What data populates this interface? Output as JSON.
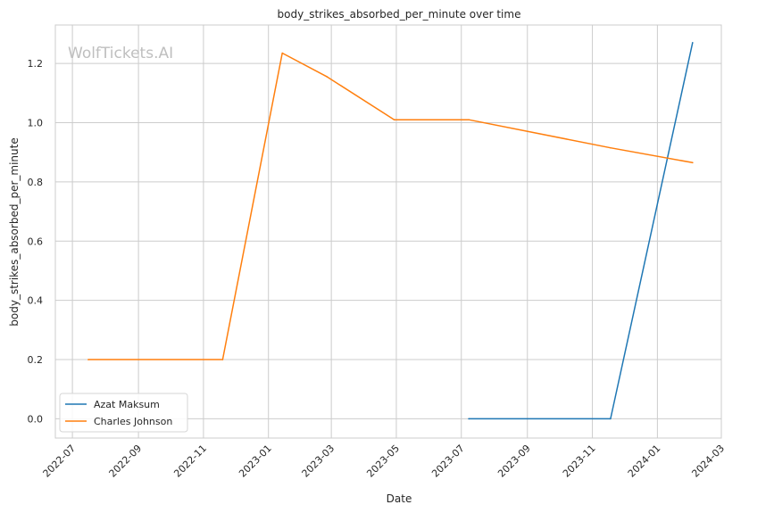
{
  "chart_data": {
    "type": "line",
    "title": "body_strikes_absorbed_per_minute over time",
    "xlabel": "Date",
    "ylabel": "body_strikes_absorbed_per_minute",
    "watermark": "WolfTickets.AI",
    "xlim": [
      "2022-06-15",
      "2024-03-01"
    ],
    "ylim": [
      -0.065,
      1.33
    ],
    "x_ticks": [
      "2022-07",
      "2022-09",
      "2022-11",
      "2023-01",
      "2023-03",
      "2023-05",
      "2023-07",
      "2023-09",
      "2023-11",
      "2024-01",
      "2024-03"
    ],
    "y_ticks": [
      "0.0",
      "0.2",
      "0.4",
      "0.6",
      "0.8",
      "1.0",
      "1.2"
    ],
    "grid": true,
    "legend_position": "lower-left",
    "series": [
      {
        "name": "Azat Maksum",
        "color": "#1f77b4",
        "x": [
          "2023-07-08",
          "2023-11-18",
          "2024-02-03"
        ],
        "y": [
          0.0,
          0.0,
          1.27
        ]
      },
      {
        "name": "Charles Johnson",
        "color": "#ff7f0e",
        "x": [
          "2022-07-16",
          "2022-11-19",
          "2023-01-14",
          "2023-02-25",
          "2023-04-29",
          "2023-07-08",
          "2023-11-18",
          "2024-02-03"
        ],
        "y": [
          0.2,
          0.2,
          1.235,
          1.155,
          1.01,
          1.01,
          0.915,
          0.865
        ]
      }
    ]
  }
}
